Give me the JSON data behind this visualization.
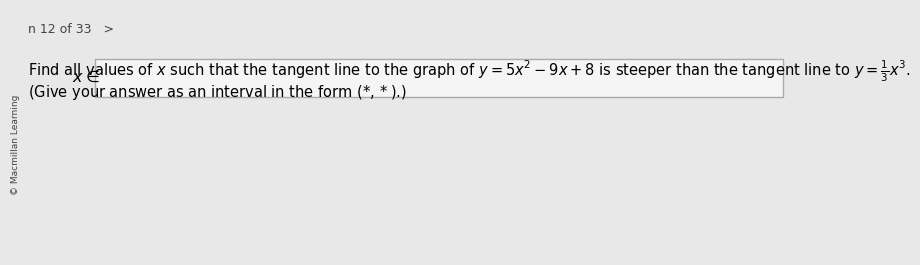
{
  "bg_color": "#e8e8e8",
  "page_indicator": "n 12 of 33   >",
  "main_text_line1": "Find all values of $x$ such that the tangent line to the graph of $y = 5x^2 - 9x + 8$ is steeper than the tangent line to $y = \\frac{1}{3}x^3$.",
  "main_text_line2": "(Give your answer as an interval in the form $(*, *)$.)",
  "side_text": "© Macmillan Learning",
  "answer_label": "$x \\in$",
  "font_size_main": 10.5,
  "font_size_page": 9,
  "font_size_side": 6.5
}
